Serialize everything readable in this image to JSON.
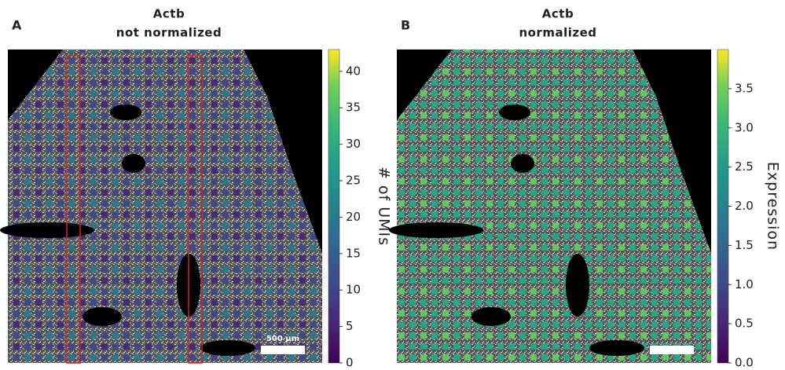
{
  "chart_data": [
    {
      "type": "spatial",
      "panel": "A",
      "title": "Actb",
      "subtitle": "not normalized",
      "colorbar_label": "# of UMIs",
      "ylim": [
        0,
        43
      ],
      "yticks": [
        0,
        5,
        10,
        15,
        20,
        25,
        30,
        35,
        40
      ],
      "scalebar": "500 µm",
      "highlight_color": "#d62020"
    },
    {
      "type": "spatial",
      "panel": "B",
      "title": "Actb",
      "subtitle": "normalized",
      "colorbar_label": "Expression",
      "ylim": [
        0,
        4
      ],
      "yticks": [
        {
          "value": 0,
          "label": "0.0"
        },
        0.5,
        {
          "value": 1,
          "label": "1.0"
        },
        1.5,
        {
          "value": 2,
          "label": "2.0"
        },
        2.5,
        {
          "value": 3,
          "label": "3.0"
        },
        3.5
      ]
    }
  ]
}
